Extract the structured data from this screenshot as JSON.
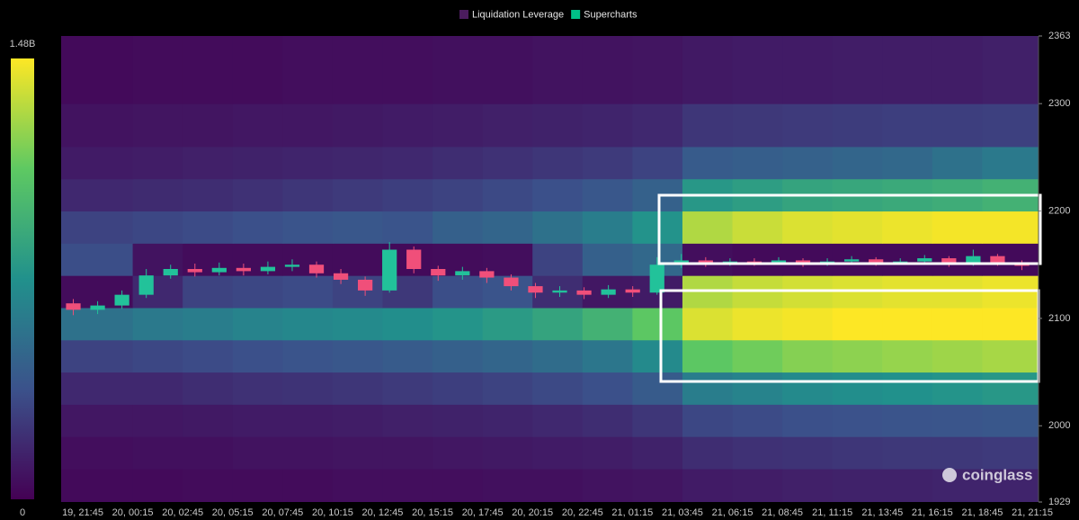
{
  "chart_data": {
    "type": "heatmap",
    "legend": [
      {
        "name": "Liquidation Leverage",
        "color": "#4b1c5e"
      },
      {
        "name": "Supercharts",
        "color": "#00c087"
      }
    ],
    "categories": [
      "19, 21:45",
      "20, 00:15",
      "20, 02:45",
      "20, 05:15",
      "20, 07:45",
      "20, 10:15",
      "20, 12:45",
      "20, 15:15",
      "20, 17:45",
      "20, 20:15",
      "20, 22:45",
      "21, 01:15",
      "21, 03:45",
      "21, 06:15",
      "21, 08:45",
      "21, 11:15",
      "21, 13:45",
      "21, 16:15",
      "21, 18:45",
      "21, 21:15"
    ],
    "ylim": [
      1929,
      2363
    ],
    "yticks": [
      1929,
      2000,
      2100,
      2200,
      2300,
      2363
    ],
    "heatmap": {
      "colormap": [
        "#440154",
        "#3b528b",
        "#21918c",
        "#5ec962",
        "#fde725"
      ],
      "zlim": [
        0,
        1.48
      ],
      "zticks": [
        0,
        {
          "value": 1.48,
          "label": "1.48B"
        }
      ],
      "y_bins": [
        1929,
        1960,
        1990,
        2020,
        2050,
        2080,
        2110,
        2140,
        2170,
        2200,
        2230,
        2260,
        2300,
        2363
      ],
      "z": [
        [
          0.04,
          0.04,
          0.05,
          0.05,
          0.05,
          0.06,
          0.06,
          0.06,
          0.07,
          0.07,
          0.08,
          0.09,
          0.12,
          0.13,
          0.14,
          0.15,
          0.15,
          0.16,
          0.16
        ],
        [
          0.06,
          0.07,
          0.07,
          0.08,
          0.08,
          0.09,
          0.09,
          0.1,
          0.11,
          0.12,
          0.13,
          0.15,
          0.2,
          0.22,
          0.23,
          0.24,
          0.25,
          0.25,
          0.26
        ],
        [
          0.1,
          0.1,
          0.11,
          0.12,
          0.12,
          0.13,
          0.14,
          0.15,
          0.16,
          0.18,
          0.2,
          0.24,
          0.32,
          0.34,
          0.36,
          0.37,
          0.38,
          0.39,
          0.4
        ],
        [
          0.18,
          0.18,
          0.2,
          0.22,
          0.23,
          0.24,
          0.26,
          0.28,
          0.3,
          0.33,
          0.36,
          0.42,
          0.62,
          0.66,
          0.7,
          0.72,
          0.74,
          0.76,
          0.78
        ],
        [
          0.3,
          0.32,
          0.34,
          0.36,
          0.38,
          0.4,
          0.42,
          0.45,
          0.48,
          0.52,
          0.58,
          0.7,
          1.1,
          1.15,
          1.2,
          1.22,
          1.24,
          1.26,
          1.28
        ],
        [
          0.55,
          0.6,
          0.62,
          0.66,
          0.68,
          0.7,
          0.72,
          0.76,
          0.8,
          0.86,
          0.95,
          1.1,
          1.4,
          1.44,
          1.46,
          1.48,
          1.48,
          1.48,
          1.48
        ],
        [
          0.05,
          0.18,
          0.3,
          0.32,
          0.34,
          0.3,
          0.25,
          0.35,
          0.38,
          0.2,
          0.1,
          0.12,
          1.3,
          1.35,
          1.38,
          1.4,
          1.42,
          1.42,
          1.44
        ],
        [
          0.35,
          0.08,
          0.05,
          0.05,
          0.05,
          0.05,
          0.04,
          0.05,
          0.06,
          0.3,
          0.45,
          0.5,
          0.06,
          0.04,
          0.04,
          0.04,
          0.04,
          0.04,
          0.04
        ],
        [
          0.3,
          0.32,
          0.34,
          0.36,
          0.38,
          0.4,
          0.38,
          0.45,
          0.48,
          0.55,
          0.62,
          0.75,
          1.3,
          1.36,
          1.4,
          1.42,
          1.44,
          1.46,
          1.46
        ],
        [
          0.18,
          0.19,
          0.2,
          0.22,
          0.24,
          0.26,
          0.28,
          0.3,
          0.33,
          0.36,
          0.4,
          0.46,
          0.78,
          0.82,
          0.86,
          0.88,
          0.9,
          0.92,
          0.95
        ],
        [
          0.12,
          0.13,
          0.14,
          0.15,
          0.16,
          0.17,
          0.18,
          0.2,
          0.22,
          0.24,
          0.26,
          0.3,
          0.42,
          0.44,
          0.46,
          0.48,
          0.5,
          0.55,
          0.6
        ],
        [
          0.08,
          0.09,
          0.09,
          0.1,
          0.1,
          0.11,
          0.12,
          0.13,
          0.14,
          0.15,
          0.16,
          0.18,
          0.24,
          0.25,
          0.26,
          0.27,
          0.28,
          0.28,
          0.29
        ],
        [
          0.04,
          0.05,
          0.05,
          0.05,
          0.06,
          0.06,
          0.06,
          0.07,
          0.07,
          0.08,
          0.08,
          0.09,
          0.11,
          0.12,
          0.12,
          0.13,
          0.13,
          0.13,
          0.14
        ]
      ]
    },
    "candles": {
      "up_color": "#22c29a",
      "down_color": "#f04f7a",
      "open": [
        2114,
        2108,
        2112,
        2122,
        2140,
        2146,
        2143,
        2147,
        2144,
        2148,
        2150,
        2142,
        2136,
        2126,
        2164,
        2146,
        2140,
        2144,
        2138,
        2130,
        2124,
        2126,
        2122,
        2127,
        2124,
        2150,
        2154,
        2151,
        2153,
        2152,
        2154,
        2151,
        2153,
        2155,
        2152,
        2153,
        2156,
        2151,
        2158,
        2152
      ],
      "high": [
        2118,
        2116,
        2126,
        2146,
        2150,
        2151,
        2152,
        2151,
        2153,
        2155,
        2153,
        2146,
        2139,
        2171,
        2167,
        2149,
        2148,
        2147,
        2141,
        2133,
        2130,
        2129,
        2131,
        2130,
        2157,
        2160,
        2157,
        2156,
        2156,
        2157,
        2156,
        2156,
        2158,
        2157,
        2156,
        2159,
        2158,
        2164,
        2160,
        2154
      ],
      "low": [
        2103,
        2104,
        2109,
        2119,
        2137,
        2139,
        2140,
        2140,
        2141,
        2144,
        2138,
        2132,
        2121,
        2124,
        2142,
        2135,
        2136,
        2133,
        2126,
        2119,
        2120,
        2118,
        2119,
        2120,
        2122,
        2147,
        2148,
        2149,
        2149,
        2150,
        2148,
        2149,
        2150,
        2149,
        2150,
        2151,
        2148,
        2149,
        2149,
        2145
      ],
      "close": [
        2108,
        2112,
        2122,
        2140,
        2146,
        2143,
        2147,
        2144,
        2148,
        2150,
        2142,
        2136,
        2126,
        2164,
        2146,
        2140,
        2144,
        2138,
        2130,
        2124,
        2126,
        2122,
        2127,
        2124,
        2150,
        2154,
        2151,
        2153,
        2152,
        2154,
        2151,
        2153,
        2155,
        2152,
        2153,
        2156,
        2151,
        2158,
        2152,
        2149
      ]
    },
    "watermark": "coinglass"
  }
}
